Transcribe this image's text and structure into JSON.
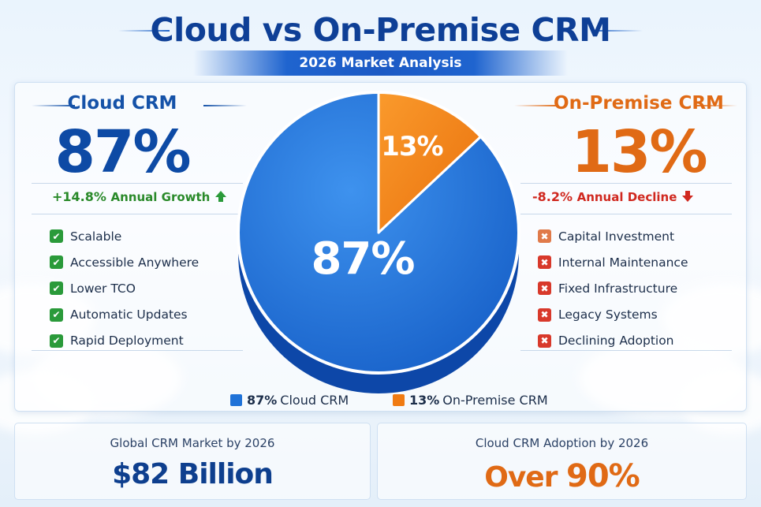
{
  "header": {
    "title": "Cloud vs On-Premise CRM",
    "subtitle": "2026 Market Analysis"
  },
  "cloud": {
    "heading": "Cloud CRM",
    "share": "87%",
    "trend_value": "+14.8%",
    "trend_text": "Annual Growth",
    "trend_icon": "arrow-up-icon",
    "features": [
      "Scalable",
      "Accessible Anywhere",
      "Lower TCO",
      "Automatic Updates",
      "Rapid Deployment"
    ],
    "feature_icon": "check-icon"
  },
  "onprem": {
    "heading": "On-Premise CRM",
    "share": "13%",
    "trend_value": "-8.2%",
    "trend_text": "Annual Decline",
    "trend_icon": "arrow-down-icon",
    "features": [
      "Capital Investment",
      "Internal Maintenance",
      "Fixed Infrastructure",
      "Legacy Systems",
      "Declining Adoption"
    ],
    "feature_icon": "x-icon"
  },
  "legend": {
    "cloud_pct": "87%",
    "cloud_label": "Cloud CRM",
    "onprem_pct": "13%",
    "onprem_label": "On-Premise CRM"
  },
  "stats": {
    "market_label": "Global CRM Market by 2026",
    "market_value": "$82 Billion",
    "adoption_label": "Cloud CRM Adoption by 2026",
    "adoption_prefix": "Over",
    "adoption_value": "90%"
  },
  "colors": {
    "cloud": "#1f72d8",
    "cloud_dark": "#0d47a8",
    "onprem": "#f07b12",
    "onprem_dark": "#c85a06",
    "growth": "#2a8a2a",
    "decline": "#d0281f"
  },
  "chart_data": {
    "type": "pie",
    "categories": [
      "Cloud CRM",
      "On-Premise CRM"
    ],
    "values": [
      87,
      13
    ],
    "labels": [
      "87%",
      "13%"
    ],
    "colors": [
      "#1f72d8",
      "#f07b12"
    ]
  }
}
